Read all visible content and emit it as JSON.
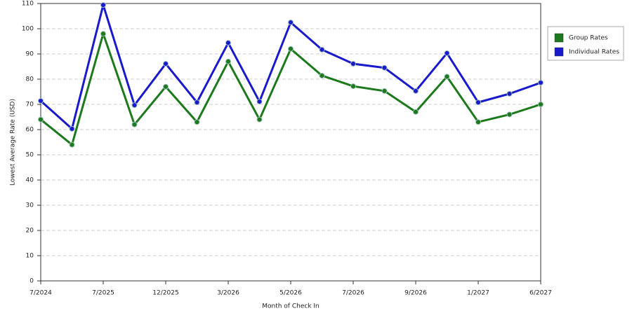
{
  "chart_data": {
    "type": "line",
    "x_label": "Month of Check In",
    "y_label": "Lowest Average Rate (USD)",
    "categories": [
      "7/2024",
      null,
      "7/2025",
      null,
      "12/2025",
      null,
      "3/2026",
      null,
      "5/2026",
      null,
      "7/2026",
      null,
      "9/2026",
      null,
      "1/2027",
      null,
      "6/2027"
    ],
    "series": [
      {
        "name": "Group Rates",
        "color": "#1c7a1c",
        "values": [
          64,
          54,
          98,
          62,
          77,
          63,
          87,
          64,
          92,
          81.4,
          77.2,
          75.3,
          67,
          81,
          63,
          66,
          70
        ]
      },
      {
        "name": "Individual Rates",
        "color": "#1a1acc",
        "values": [
          71.4,
          60.3,
          109.4,
          69.7,
          86.1,
          70.8,
          94.4,
          71.1,
          102.5,
          91.7,
          86.1,
          84.5,
          75.3,
          90.3,
          70.8,
          74.2,
          78.6
        ]
      }
    ],
    "ylim": [
      0,
      110
    ],
    "yticks": [
      0,
      10,
      20,
      30,
      40,
      50,
      60,
      70,
      80,
      90,
      100,
      110
    ],
    "grid": true,
    "legend": "right"
  }
}
